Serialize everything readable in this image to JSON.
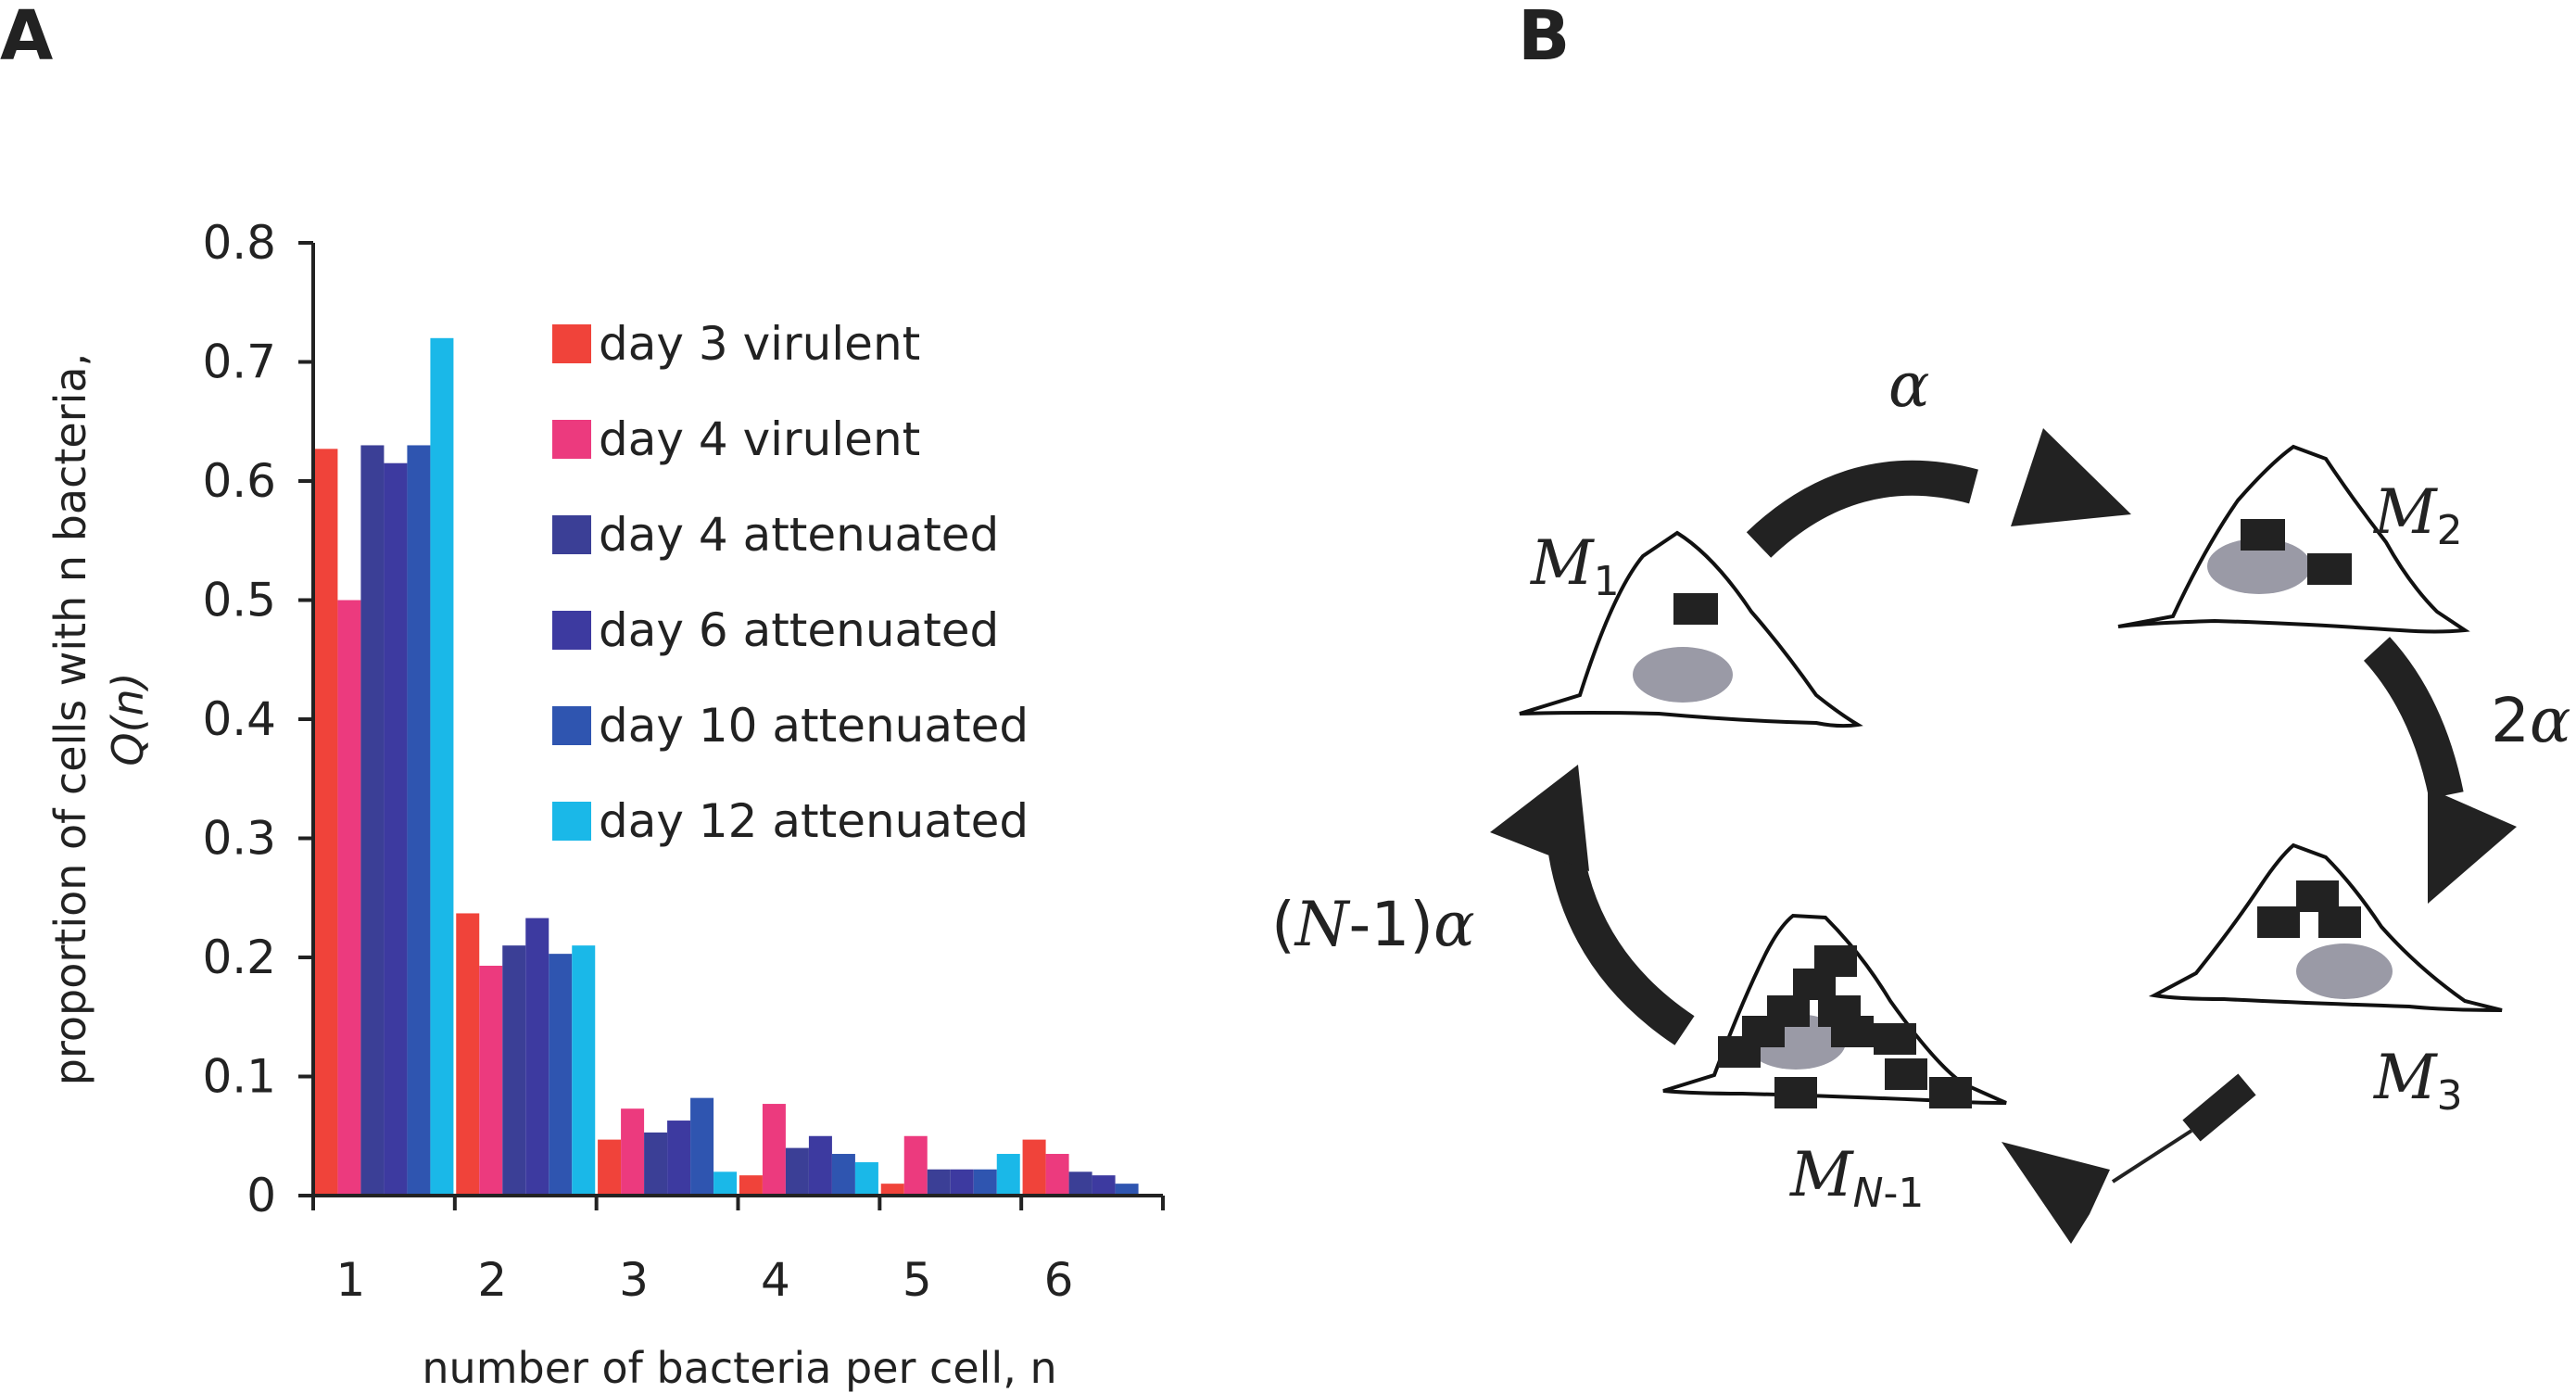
{
  "panel_a_label": "A",
  "panel_b_label": "B",
  "chart_data": {
    "type": "bar",
    "title": "",
    "xlabel": "number of bacteria per cell, n",
    "ylabel_line1": "proportion of cells with n bacteria,",
    "ylabel_line2": "Q(n)",
    "ylim": [
      0,
      0.8
    ],
    "yticks": [
      "0",
      "0.1",
      "0.2",
      "0.3",
      "0.4",
      "0.5",
      "0.6",
      "0.7",
      "0.8"
    ],
    "categories": [
      "1",
      "2",
      "3",
      "4",
      "5",
      "6"
    ],
    "legend_position": "top-right",
    "grid": false,
    "series": [
      {
        "name": "day 3 virulent",
        "color": "#f0433a",
        "values": [
          0.627,
          0.237,
          0.047,
          0.017,
          0.01,
          0.047
        ]
      },
      {
        "name": "day 4 virulent",
        "color": "#ec3a7e",
        "values": [
          0.5,
          0.193,
          0.073,
          0.077,
          0.05,
          0.035
        ]
      },
      {
        "name": "day 4 attenuated",
        "color": "#3b3f96",
        "values": [
          0.63,
          0.21,
          0.053,
          0.04,
          0.022,
          0.02
        ]
      },
      {
        "name": "day 6 attenuated",
        "color": "#3d3aa0",
        "values": [
          0.615,
          0.233,
          0.063,
          0.05,
          0.022,
          0.017
        ]
      },
      {
        "name": "day 10 attenuated",
        "color": "#2f55b0",
        "values": [
          0.63,
          0.203,
          0.082,
          0.035,
          0.022,
          0.01
        ]
      },
      {
        "name": "day 12 attenuated",
        "color": "#1ab8e8",
        "values": [
          0.72,
          0.21,
          0.02,
          0.028,
          0.035,
          0.0
        ]
      }
    ]
  },
  "diagram": {
    "rate_alpha": "α",
    "rate_2alpha_coef": "2",
    "rate_2alpha_sym": "α",
    "rate_n1_open": "(",
    "rate_n1_N": "N",
    "rate_n1_rest": "-1)",
    "rate_n1_sym": "α",
    "m1_letter": "M",
    "m1_sub": "1",
    "m2_letter": "M",
    "m2_sub": "2",
    "m3_letter": "M",
    "m3_sub": "3",
    "mn_letter": "M",
    "mn_sub_italic": "N",
    "mn_sub_rest": "-1"
  }
}
